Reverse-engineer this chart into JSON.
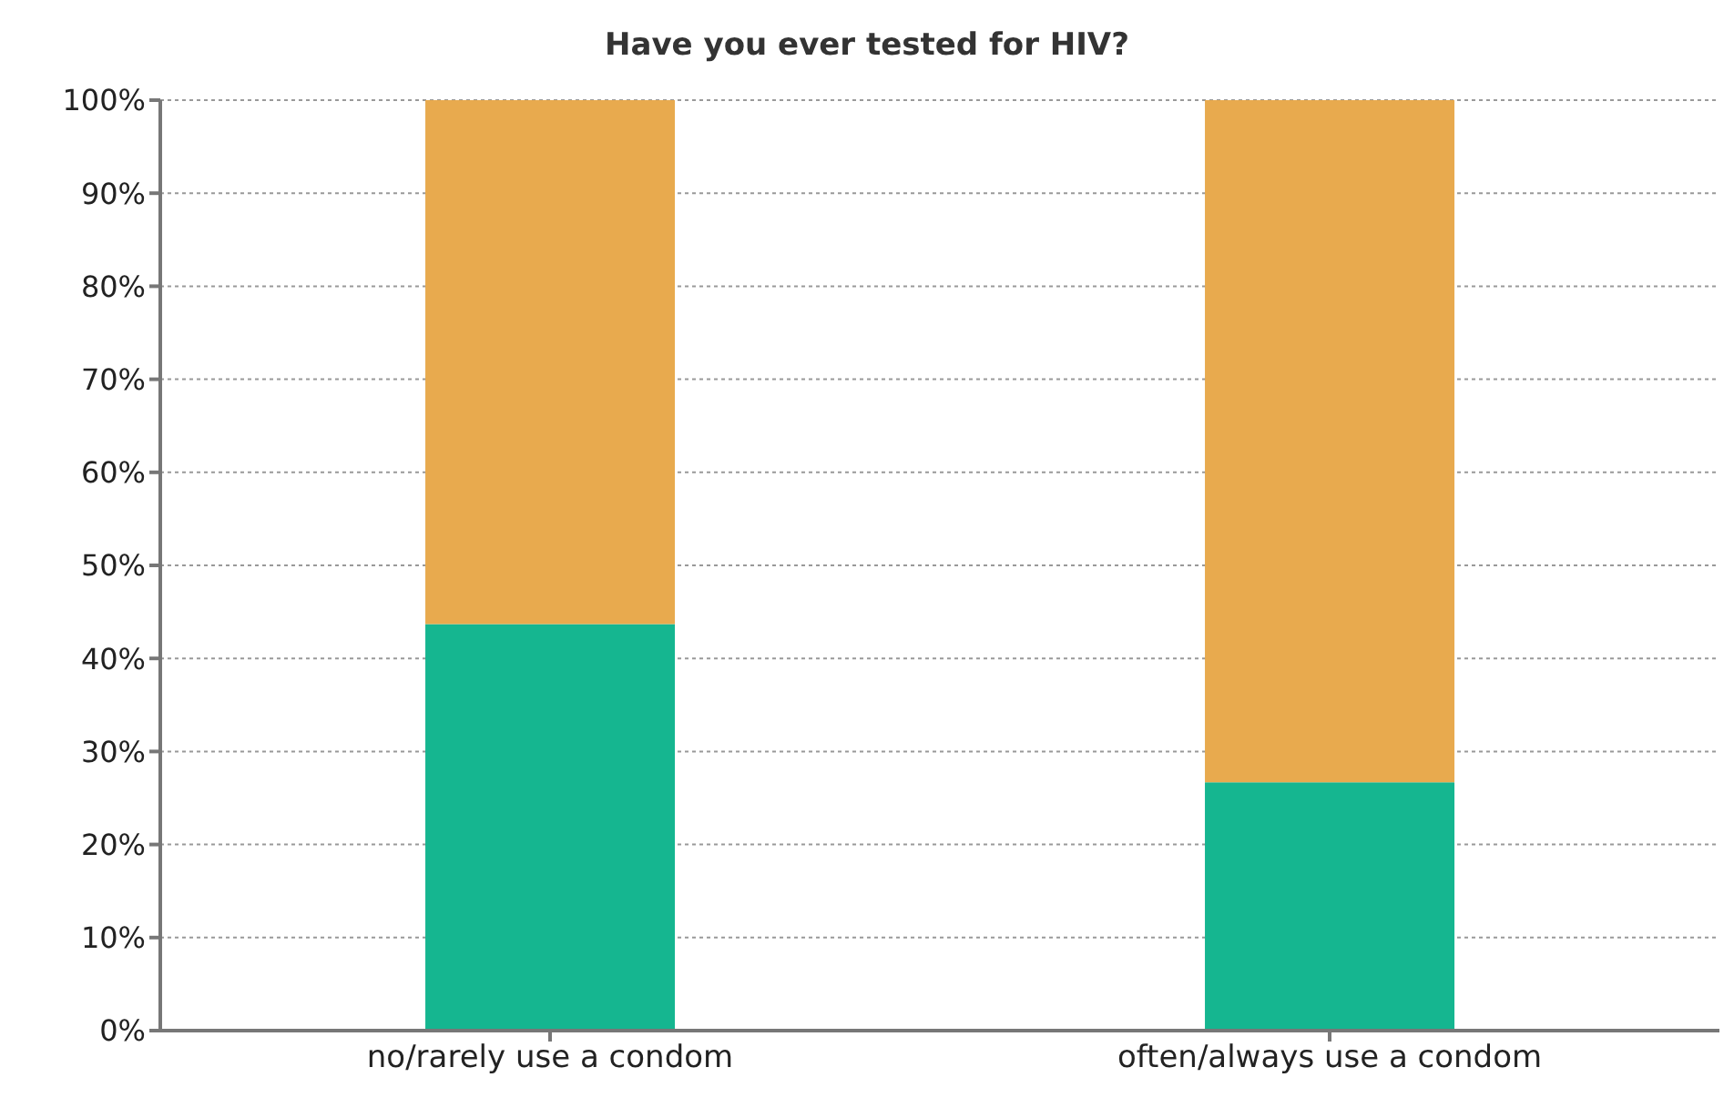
{
  "chart_data": {
    "type": "bar",
    "title": "Have you ever tested for HIV?",
    "categories": [
      "no/rarely use a condom",
      "often/always use a condom"
    ],
    "stacked": true,
    "series": [
      {
        "color": "#15b690",
        "values": [
          43.7,
          26.7
        ]
      },
      {
        "color": "#e8aa4e",
        "values": [
          56.3,
          73.3
        ]
      }
    ],
    "ylim": [
      0,
      100
    ],
    "yticks": [
      {
        "value": 0,
        "label": "0%"
      },
      {
        "value": 10,
        "label": "10%"
      },
      {
        "value": 20,
        "label": "20%"
      },
      {
        "value": 30,
        "label": "30%"
      },
      {
        "value": 40,
        "label": "40%"
      },
      {
        "value": 50,
        "label": "50%"
      },
      {
        "value": 60,
        "label": "60%"
      },
      {
        "value": 70,
        "label": "70%"
      },
      {
        "value": 80,
        "label": "80%"
      },
      {
        "value": 90,
        "label": "90%"
      },
      {
        "value": 100,
        "label": "100%"
      }
    ],
    "grid": "y",
    "legend": false
  }
}
